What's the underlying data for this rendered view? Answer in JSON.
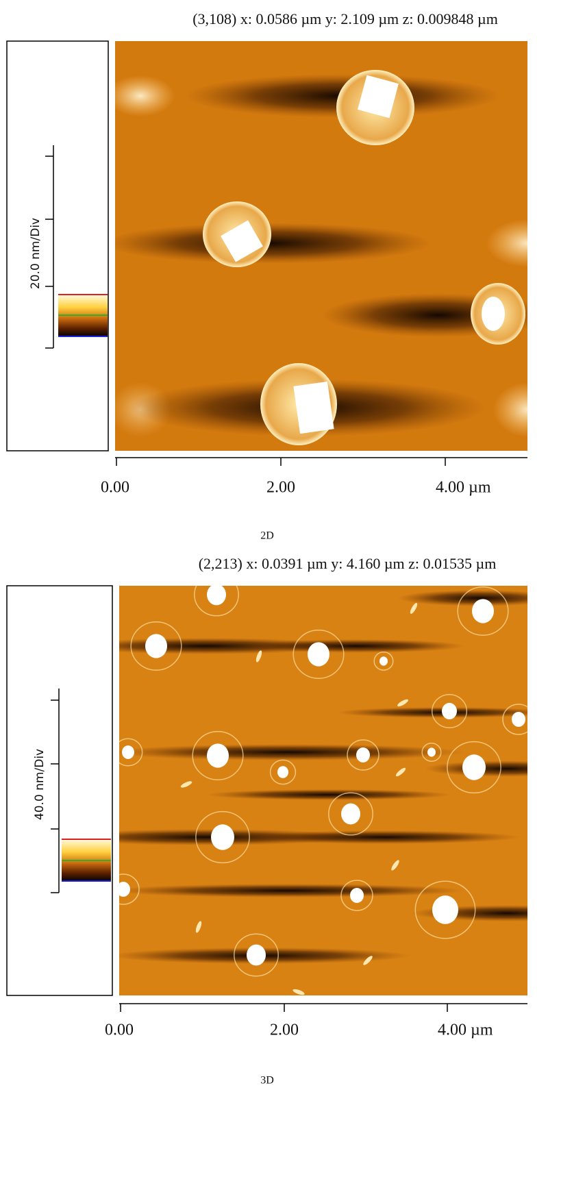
{
  "panels": [
    {
      "header": "(3,108)  x: 0.0586 µm   y: 2.109 µm  z: 0.009848 µm",
      "scale_label": "20.0 nm/Div",
      "x_ticks": [
        "0.00",
        "2.00",
        "4.00 µm"
      ],
      "caption": "2D"
    },
    {
      "header": "(2,213)  x: 0.0391 µm   y: 4.160 µm  z: 0.01535 µm",
      "scale_label": "40.0 nm/Div",
      "x_ticks": [
        "0.00",
        "2.00",
        "4.00 µm"
      ],
      "caption": "3D"
    }
  ]
}
